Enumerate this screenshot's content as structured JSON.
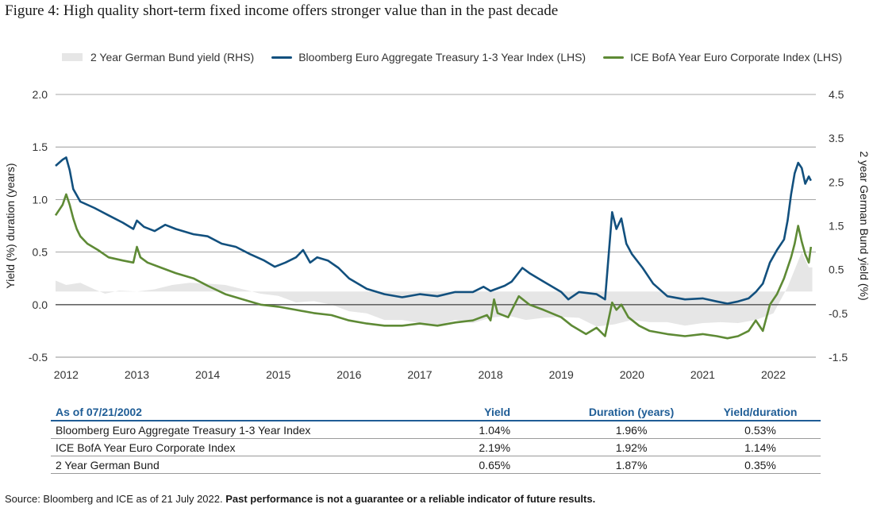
{
  "title": "Figure 4: High quality short-term fixed income offers stronger value than in the past decade",
  "chart_data": {
    "type": "line",
    "title": "Figure 4: High quality short-term fixed income offers stronger value than in the past decade",
    "ylabel_left": "Yield (%) duration (years)",
    "ylabel_right": "2 year German Bund yield (%)",
    "left_ticks": [
      "2.0",
      "1.5",
      "1.0",
      "0.5",
      "0.0",
      "-0.5"
    ],
    "right_ticks": [
      "4.5",
      "3.5",
      "2.5",
      "1.5",
      "0.5",
      "-0.5",
      "-1.5"
    ],
    "x_ticks": [
      "2012",
      "2013",
      "2014",
      "2015",
      "2016",
      "2017",
      "2018",
      "2019",
      "2020",
      "2021",
      "2022"
    ],
    "ylim_left": [
      -0.5,
      2.0
    ],
    "ylim_right": [
      -1.5,
      4.5
    ],
    "xlim": [
      2011.85,
      2022.6
    ],
    "grid": true,
    "legend_position": "top",
    "colors": {
      "bund": "#e6e6e6",
      "treasury": "#12507e",
      "corporate": "#5e8a35",
      "grid": "#8a8a8a",
      "zero_line": "#666666"
    },
    "series": [
      {
        "name": "2 Year German Bund yield (RHS)",
        "axis": "right",
        "kind": "area",
        "points": [
          [
            2011.85,
            0.25
          ],
          [
            2012.0,
            0.15
          ],
          [
            2012.2,
            0.2
          ],
          [
            2012.4,
            0.05
          ],
          [
            2012.55,
            -0.05
          ],
          [
            2012.75,
            0.02
          ],
          [
            2013.0,
            0.0
          ],
          [
            2013.25,
            0.05
          ],
          [
            2013.5,
            0.15
          ],
          [
            2013.75,
            0.2
          ],
          [
            2014.0,
            0.18
          ],
          [
            2014.25,
            0.15
          ],
          [
            2014.5,
            0.05
          ],
          [
            2014.75,
            -0.05
          ],
          [
            2015.0,
            -0.1
          ],
          [
            2015.25,
            -0.25
          ],
          [
            2015.5,
            -0.22
          ],
          [
            2015.75,
            -0.3
          ],
          [
            2016.0,
            -0.45
          ],
          [
            2016.25,
            -0.5
          ],
          [
            2016.5,
            -0.65
          ],
          [
            2016.75,
            -0.65
          ],
          [
            2017.0,
            -0.72
          ],
          [
            2017.25,
            -0.78
          ],
          [
            2017.5,
            -0.65
          ],
          [
            2017.75,
            -0.72
          ],
          [
            2018.0,
            -0.6
          ],
          [
            2018.25,
            -0.55
          ],
          [
            2018.5,
            -0.65
          ],
          [
            2018.75,
            -0.6
          ],
          [
            2019.0,
            -0.58
          ],
          [
            2019.25,
            -0.6
          ],
          [
            2019.5,
            -0.8
          ],
          [
            2019.75,
            -0.75
          ],
          [
            2020.0,
            -0.65
          ],
          [
            2020.25,
            -0.7
          ],
          [
            2020.5,
            -0.7
          ],
          [
            2020.75,
            -0.78
          ],
          [
            2021.0,
            -0.72
          ],
          [
            2021.25,
            -0.7
          ],
          [
            2021.5,
            -0.72
          ],
          [
            2021.75,
            -0.65
          ],
          [
            2022.0,
            -0.5
          ],
          [
            2022.1,
            -0.2
          ],
          [
            2022.2,
            0.1
          ],
          [
            2022.3,
            0.5
          ],
          [
            2022.4,
            0.9
          ],
          [
            2022.5,
            0.55
          ],
          [
            2022.55,
            0.55
          ]
        ]
      },
      {
        "name": "Bloomberg Euro Aggregate Treasury 1-3 Year Index (LHS)",
        "axis": "left",
        "kind": "line",
        "points": [
          [
            2011.85,
            1.32
          ],
          [
            2011.95,
            1.38
          ],
          [
            2012.0,
            1.4
          ],
          [
            2012.05,
            1.28
          ],
          [
            2012.1,
            1.1
          ],
          [
            2012.2,
            0.98
          ],
          [
            2012.4,
            0.92
          ],
          [
            2012.6,
            0.85
          ],
          [
            2012.8,
            0.78
          ],
          [
            2012.95,
            0.72
          ],
          [
            2013.0,
            0.8
          ],
          [
            2013.1,
            0.74
          ],
          [
            2013.25,
            0.7
          ],
          [
            2013.4,
            0.76
          ],
          [
            2013.55,
            0.72
          ],
          [
            2013.8,
            0.67
          ],
          [
            2014.0,
            0.65
          ],
          [
            2014.2,
            0.58
          ],
          [
            2014.4,
            0.55
          ],
          [
            2014.6,
            0.48
          ],
          [
            2014.8,
            0.42
          ],
          [
            2014.95,
            0.36
          ],
          [
            2015.1,
            0.4
          ],
          [
            2015.25,
            0.45
          ],
          [
            2015.35,
            0.52
          ],
          [
            2015.45,
            0.4
          ],
          [
            2015.55,
            0.45
          ],
          [
            2015.7,
            0.42
          ],
          [
            2015.85,
            0.35
          ],
          [
            2016.0,
            0.25
          ],
          [
            2016.25,
            0.15
          ],
          [
            2016.5,
            0.1
          ],
          [
            2016.75,
            0.07
          ],
          [
            2017.0,
            0.1
          ],
          [
            2017.25,
            0.08
          ],
          [
            2017.5,
            0.12
          ],
          [
            2017.75,
            0.12
          ],
          [
            2017.9,
            0.17
          ],
          [
            2018.0,
            0.13
          ],
          [
            2018.2,
            0.18
          ],
          [
            2018.3,
            0.22
          ],
          [
            2018.45,
            0.35
          ],
          [
            2018.55,
            0.3
          ],
          [
            2018.75,
            0.22
          ],
          [
            2018.9,
            0.16
          ],
          [
            2019.0,
            0.12
          ],
          [
            2019.1,
            0.05
          ],
          [
            2019.25,
            0.12
          ],
          [
            2019.5,
            0.1
          ],
          [
            2019.62,
            0.05
          ],
          [
            2019.72,
            0.88
          ],
          [
            2019.78,
            0.72
          ],
          [
            2019.85,
            0.82
          ],
          [
            2019.92,
            0.58
          ],
          [
            2020.0,
            0.48
          ],
          [
            2020.15,
            0.35
          ],
          [
            2020.3,
            0.2
          ],
          [
            2020.5,
            0.08
          ],
          [
            2020.75,
            0.05
          ],
          [
            2021.0,
            0.06
          ],
          [
            2021.2,
            0.03
          ],
          [
            2021.35,
            0.01
          ],
          [
            2021.5,
            0.03
          ],
          [
            2021.65,
            0.06
          ],
          [
            2021.75,
            0.12
          ],
          [
            2021.85,
            0.2
          ],
          [
            2021.95,
            0.4
          ],
          [
            2022.05,
            0.52
          ],
          [
            2022.15,
            0.62
          ],
          [
            2022.2,
            0.8
          ],
          [
            2022.25,
            1.05
          ],
          [
            2022.3,
            1.25
          ],
          [
            2022.35,
            1.35
          ],
          [
            2022.4,
            1.3
          ],
          [
            2022.45,
            1.15
          ],
          [
            2022.5,
            1.22
          ],
          [
            2022.53,
            1.18
          ]
        ]
      },
      {
        "name": "ICE BofA Year Euro Corporate Index (LHS)",
        "axis": "left",
        "kind": "line",
        "points": [
          [
            2011.85,
            0.85
          ],
          [
            2011.95,
            0.95
          ],
          [
            2012.0,
            1.05
          ],
          [
            2012.05,
            0.95
          ],
          [
            2012.1,
            0.82
          ],
          [
            2012.15,
            0.72
          ],
          [
            2012.2,
            0.65
          ],
          [
            2012.3,
            0.58
          ],
          [
            2012.45,
            0.52
          ],
          [
            2012.6,
            0.45
          ],
          [
            2012.8,
            0.42
          ],
          [
            2012.95,
            0.4
          ],
          [
            2013.0,
            0.55
          ],
          [
            2013.05,
            0.45
          ],
          [
            2013.15,
            0.4
          ],
          [
            2013.35,
            0.35
          ],
          [
            2013.55,
            0.3
          ],
          [
            2013.8,
            0.25
          ],
          [
            2014.0,
            0.18
          ],
          [
            2014.25,
            0.1
          ],
          [
            2014.5,
            0.05
          ],
          [
            2014.75,
            0.0
          ],
          [
            2015.0,
            -0.02
          ],
          [
            2015.25,
            -0.05
          ],
          [
            2015.5,
            -0.08
          ],
          [
            2015.75,
            -0.1
          ],
          [
            2016.0,
            -0.15
          ],
          [
            2016.25,
            -0.18
          ],
          [
            2016.5,
            -0.2
          ],
          [
            2016.75,
            -0.2
          ],
          [
            2017.0,
            -0.18
          ],
          [
            2017.25,
            -0.2
          ],
          [
            2017.5,
            -0.17
          ],
          [
            2017.75,
            -0.15
          ],
          [
            2017.95,
            -0.1
          ],
          [
            2018.0,
            -0.15
          ],
          [
            2018.05,
            0.05
          ],
          [
            2018.1,
            -0.08
          ],
          [
            2018.25,
            -0.12
          ],
          [
            2018.4,
            0.08
          ],
          [
            2018.55,
            0.0
          ],
          [
            2018.75,
            -0.05
          ],
          [
            2019.0,
            -0.12
          ],
          [
            2019.15,
            -0.2
          ],
          [
            2019.35,
            -0.28
          ],
          [
            2019.5,
            -0.22
          ],
          [
            2019.62,
            -0.3
          ],
          [
            2019.72,
            0.02
          ],
          [
            2019.78,
            -0.05
          ],
          [
            2019.85,
            0.0
          ],
          [
            2019.95,
            -0.12
          ],
          [
            2020.1,
            -0.2
          ],
          [
            2020.25,
            -0.25
          ],
          [
            2020.5,
            -0.28
          ],
          [
            2020.75,
            -0.3
          ],
          [
            2021.0,
            -0.28
          ],
          [
            2021.2,
            -0.3
          ],
          [
            2021.35,
            -0.32
          ],
          [
            2021.5,
            -0.3
          ],
          [
            2021.65,
            -0.25
          ],
          [
            2021.75,
            -0.15
          ],
          [
            2021.85,
            -0.25
          ],
          [
            2021.95,
            0.0
          ],
          [
            2022.05,
            0.1
          ],
          [
            2022.15,
            0.25
          ],
          [
            2022.25,
            0.45
          ],
          [
            2022.3,
            0.58
          ],
          [
            2022.35,
            0.75
          ],
          [
            2022.4,
            0.6
          ],
          [
            2022.45,
            0.48
          ],
          [
            2022.5,
            0.4
          ],
          [
            2022.53,
            0.55
          ]
        ]
      }
    ]
  },
  "table": {
    "headers": [
      "As of 07/21/2002",
      "Yield",
      "Duration (years)",
      "Yield/duration"
    ],
    "rows": [
      [
        "Bloomberg Euro Aggregate Treasury 1-3 Year Index",
        "1.04%",
        "1.96%",
        "0.53%"
      ],
      [
        "ICE BofA Year Euro Corporate Index",
        "2.19%",
        "1.92%",
        "1.14%"
      ],
      [
        "2 Year German Bund",
        "0.65%",
        "1.87%",
        "0.35%"
      ]
    ]
  },
  "source": {
    "text": "Source: Bloomberg and ICE as of 21 July 2022.",
    "bold": "Past performance is not a guarantee or a reliable indicator of future results."
  }
}
